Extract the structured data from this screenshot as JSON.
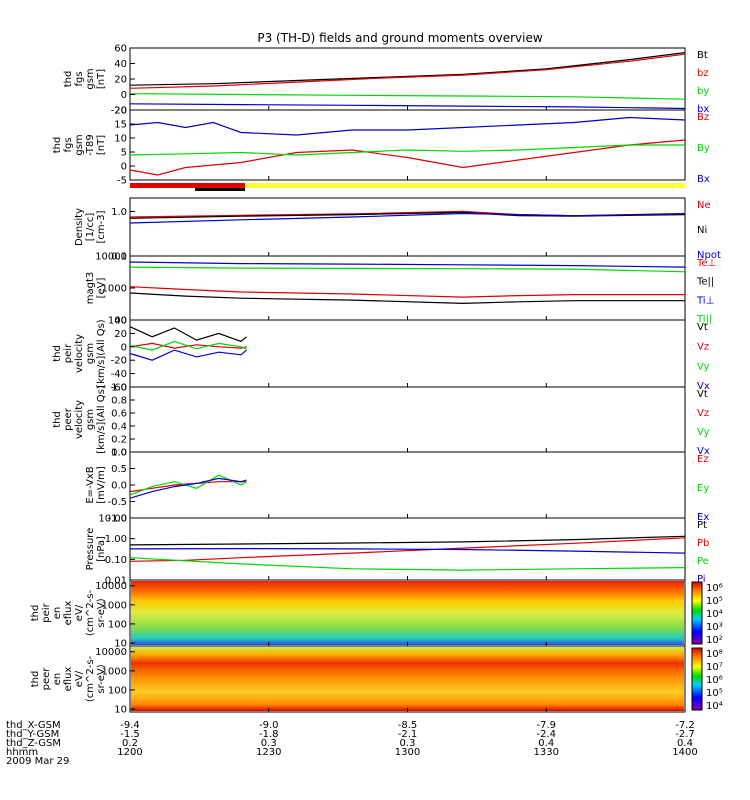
{
  "title": "P3 (TH-D) fields and ground moments overview",
  "colors": {
    "black": "#000000",
    "red": "#e00000",
    "green": "#00d800",
    "blue": "#0000cc",
    "yellow": "#ffff40"
  },
  "chart_data": {
    "type": "line",
    "x_ticks": [
      "1200",
      "1230",
      "1300",
      "1330",
      "1400"
    ],
    "footer": {
      "labels": [
        "thd_X-GSM",
        "thd_Y-GSM",
        "thd_Z-GSM",
        "hhmm",
        "2009 Mar 29"
      ],
      "rows": [
        [
          "-9.4",
          "-9.0",
          "-8.5",
          "-7.9",
          "-7.2"
        ],
        [
          "-1.5",
          "-1.8",
          "-2.1",
          "-2.4",
          "-2.7"
        ],
        [
          "0.2",
          "0.3",
          "0.3",
          "0.4",
          "0.4"
        ],
        [
          "1200",
          "1230",
          "1300",
          "1330",
          "1400"
        ]
      ]
    },
    "panels": [
      {
        "id": "fgs",
        "ylabel": [
          "thd",
          "fgs",
          "gsm",
          "[nT]"
        ],
        "ylim": [
          -20,
          60
        ],
        "yticks": [
          "60",
          "40",
          "20",
          "0",
          "-20"
        ],
        "legend": [
          "Bt",
          "bz",
          "by",
          "bx"
        ],
        "series": [
          {
            "name": "Bt",
            "color": "black",
            "x": [
              0,
              0.15,
              0.3,
              0.45,
              0.6,
              0.75,
              0.9,
              1
            ],
            "y": [
              12,
              14,
              18,
              22,
              26,
              33,
              45,
              54
            ]
          },
          {
            "name": "bz",
            "color": "red",
            "x": [
              0,
              0.15,
              0.3,
              0.45,
              0.6,
              0.75,
              0.9,
              1
            ],
            "y": [
              8,
              11,
              16,
              21,
              25,
              32,
              43,
              52
            ]
          },
          {
            "name": "by",
            "color": "green",
            "x": [
              0,
              0.2,
              0.4,
              0.6,
              0.8,
              1
            ],
            "y": [
              1,
              0,
              -1,
              -2,
              -3,
              -6
            ]
          },
          {
            "name": "bx",
            "color": "blue",
            "x": [
              0,
              0.2,
              0.4,
              0.6,
              0.8,
              1
            ],
            "y": [
              -12,
              -13,
              -14,
              -15,
              -16,
              -18
            ]
          }
        ]
      },
      {
        "id": "t89",
        "ylabel": [
          "thd",
          "fgs",
          "gsm",
          "-T89",
          "[nT]"
        ],
        "ylim": [
          -8,
          20
        ],
        "yticks": [
          "20",
          "15",
          "10",
          "5",
          "0",
          "-5"
        ],
        "legend": [
          "Bz",
          "By",
          "Bx"
        ],
        "series": [
          {
            "name": "Bz",
            "color": "red",
            "x": [
              0,
              0.05,
              0.1,
              0.2,
              0.3,
              0.4,
              0.5,
              0.6,
              0.7,
              0.8,
              0.9,
              1
            ],
            "y": [
              -4,
              -6,
              -3,
              -1,
              3,
              4,
              1,
              -3,
              0,
              3,
              6,
              8
            ]
          },
          {
            "name": "By",
            "color": "green",
            "x": [
              0,
              0.1,
              0.2,
              0.3,
              0.4,
              0.5,
              0.6,
              0.7,
              0.8,
              0.9,
              1
            ],
            "y": [
              2,
              2.5,
              3,
              2,
              3,
              4,
              3.5,
              4,
              5,
              6,
              6
            ]
          },
          {
            "name": "Bx",
            "color": "blue",
            "x": [
              0,
              0.05,
              0.1,
              0.15,
              0.2,
              0.3,
              0.4,
              0.5,
              0.6,
              0.7,
              0.8,
              0.9,
              1
            ],
            "y": [
              14,
              15,
              13,
              15,
              11,
              10,
              12,
              12,
              13,
              14,
              15,
              17,
              16
            ]
          }
        ]
      },
      {
        "id": "density",
        "ylabel": [
          "Density",
          "[1/cc]",
          "[cm-3]"
        ],
        "scale": "log",
        "ylim": [
          0.1,
          2
        ],
        "yticks": [
          "1.0",
          "0.1"
        ],
        "legend": [
          "Ne",
          "Ni",
          "Npot"
        ],
        "series": [
          {
            "name": "Ne",
            "color": "red",
            "x": [
              0,
              0.2,
              0.4,
              0.6,
              0.7,
              0.8,
              1
            ],
            "y": [
              0.75,
              0.82,
              0.88,
              1.0,
              0.85,
              0.8,
              0.9
            ]
          },
          {
            "name": "Ni",
            "color": "black",
            "x": [
              0,
              0.2,
              0.4,
              0.6,
              0.7,
              0.8,
              1
            ],
            "y": [
              0.7,
              0.78,
              0.85,
              0.95,
              0.8,
              0.78,
              0.85
            ]
          },
          {
            "name": "Npot",
            "color": "blue",
            "x": [
              0,
              0.2,
              0.4,
              0.6,
              0.8,
              1
            ],
            "y": [
              0.55,
              0.65,
              0.75,
              0.9,
              0.8,
              0.88
            ]
          }
        ]
      },
      {
        "id": "temp",
        "ylabel": [
          "magt3",
          "[eV]"
        ],
        "scale": "log",
        "ylim": [
          100,
          10000
        ],
        "yticks": [
          "10000",
          "1000",
          "100"
        ],
        "legend": [
          "Te⊥",
          "Te||",
          "Ti⊥",
          "Ti||"
        ],
        "series": [
          {
            "name": "Ti⊥",
            "color": "blue",
            "x": [
              0,
              0.2,
              0.4,
              0.6,
              0.8,
              1
            ],
            "y": [
              6500,
              5800,
              5600,
              5300,
              5000,
              4500
            ]
          },
          {
            "name": "Ti||",
            "color": "green",
            "x": [
              0,
              0.2,
              0.4,
              0.6,
              0.8,
              1
            ],
            "y": [
              4500,
              4200,
              4100,
              4000,
              3900,
              3200
            ]
          },
          {
            "name": "Te⊥",
            "color": "red",
            "x": [
              0,
              0.1,
              0.2,
              0.4,
              0.6,
              0.7,
              0.8,
              1
            ],
            "y": [
              1100,
              900,
              750,
              650,
              520,
              580,
              620,
              620
            ]
          },
          {
            "name": "Te||",
            "color": "black",
            "x": [
              0,
              0.1,
              0.2,
              0.4,
              0.6,
              0.7,
              0.8,
              1
            ],
            "y": [
              700,
              560,
              480,
              420,
              330,
              370,
              400,
              400
            ]
          }
        ]
      },
      {
        "id": "peir",
        "ylabel": [
          "thd",
          "peir",
          "velocity",
          "gsm",
          "[km/s](All Qs)"
        ],
        "ylim": [
          -60,
          40
        ],
        "yticks": [
          "40",
          "20",
          "0",
          "-20",
          "-40",
          "-60"
        ],
        "legend": [
          "Vt",
          "Vz",
          "Vy",
          "Vx"
        ],
        "series": [
          {
            "name": "Vt",
            "color": "black",
            "x": [
              0,
              0.04,
              0.08,
              0.12,
              0.16,
              0.2,
              0.21
            ],
            "y": [
              30,
              15,
              28,
              10,
              20,
              8,
              15
            ]
          },
          {
            "name": "Vz",
            "color": "red",
            "x": [
              0,
              0.04,
              0.08,
              0.12,
              0.16,
              0.2,
              0.21
            ],
            "y": [
              0,
              5,
              -2,
              3,
              0,
              -2,
              0
            ]
          },
          {
            "name": "Vy",
            "color": "green",
            "x": [
              0,
              0.04,
              0.08,
              0.12,
              0.16,
              0.2,
              0.21
            ],
            "y": [
              2,
              -5,
              8,
              -3,
              5,
              0,
              -3
            ]
          },
          {
            "name": "Vx",
            "color": "blue",
            "x": [
              0,
              0.04,
              0.08,
              0.12,
              0.16,
              0.2,
              0.21
            ],
            "y": [
              -10,
              -20,
              -5,
              -15,
              -8,
              -12,
              -5
            ]
          }
        ]
      },
      {
        "id": "peer",
        "ylabel": [
          "thd",
          "peer",
          "velocity",
          "gsm",
          "[km/s](All Qs)"
        ],
        "ylim": [
          0,
          1
        ],
        "yticks": [
          "1.0",
          "0.8",
          "0.6",
          "0.4",
          "0.2",
          "0.0"
        ],
        "legend": [
          "Vt",
          "Vz",
          "Vy",
          "Vx"
        ],
        "series": []
      },
      {
        "id": "efield",
        "ylabel": [
          "E=-VxB",
          "[mV/m]"
        ],
        "ylim": [
          -1,
          1
        ],
        "yticks": [
          "1.0",
          "0.5",
          "0.0",
          "-0.5",
          "-1.0"
        ],
        "legend": [
          "Ez",
          "Ey",
          "Ex"
        ],
        "series": [
          {
            "name": "Ez",
            "color": "red",
            "x": [
              0,
              0.04,
              0.08,
              0.12,
              0.16,
              0.2,
              0.21
            ],
            "y": [
              -0.2,
              -0.1,
              0.0,
              0.05,
              0.1,
              0.1,
              0.1
            ]
          },
          {
            "name": "Ey",
            "color": "green",
            "x": [
              0,
              0.04,
              0.08,
              0.12,
              0.16,
              0.2,
              0.21
            ],
            "y": [
              -0.3,
              -0.05,
              0.1,
              -0.1,
              0.3,
              0.0,
              0.1
            ]
          },
          {
            "name": "Ex",
            "color": "blue",
            "x": [
              0,
              0.04,
              0.08,
              0.12,
              0.16,
              0.2,
              0.21
            ],
            "y": [
              -0.4,
              -0.2,
              -0.05,
              0.05,
              0.2,
              0.1,
              0.15
            ]
          }
        ]
      },
      {
        "id": "pressure",
        "ylabel": [
          "Pressure",
          "[nPa]"
        ],
        "scale": "log",
        "ylim": [
          0.01,
          10
        ],
        "yticks": [
          "10.00",
          "1.00",
          "0.10",
          "0.01"
        ],
        "legend": [
          "Pt",
          "Pb",
          "Pe",
          "Pi"
        ],
        "series": [
          {
            "name": "Pt",
            "color": "black",
            "x": [
              0,
              0.2,
              0.4,
              0.6,
              0.8,
              1
            ],
            "y": [
              0.5,
              0.55,
              0.62,
              0.7,
              0.9,
              1.3
            ]
          },
          {
            "name": "Pb",
            "color": "red",
            "x": [
              0,
              0.1,
              0.2,
              0.4,
              0.6,
              0.8,
              1
            ],
            "y": [
              0.08,
              0.09,
              0.12,
              0.2,
              0.35,
              0.6,
              1.1
            ]
          },
          {
            "name": "Pe",
            "color": "green",
            "x": [
              0,
              0.2,
              0.4,
              0.6,
              0.8,
              1
            ],
            "y": [
              0.12,
              0.06,
              0.035,
              0.03,
              0.035,
              0.04
            ]
          },
          {
            "name": "Pi",
            "color": "blue",
            "x": [
              0,
              0.2,
              0.4,
              0.6,
              0.8,
              1
            ],
            "y": [
              0.32,
              0.33,
              0.32,
              0.3,
              0.25,
              0.2
            ]
          }
        ]
      },
      {
        "id": "peir_spec",
        "type": "heatmap",
        "ylabel": [
          "thd",
          "peir",
          "en",
          "eflux",
          "eV/",
          "(cm^2-s-",
          "sr-eV)"
        ],
        "scale": "log",
        "ylim": [
          7,
          20000
        ],
        "yticks": [
          "10000",
          "1000",
          "100",
          "10"
        ],
        "colorbar_ticks": [
          "10⁶",
          "10⁵",
          "10⁴",
          "10³",
          "10²"
        ]
      },
      {
        "id": "peer_spec",
        "type": "heatmap",
        "ylabel": [
          "thd",
          "peer",
          "en",
          "eflux",
          "eV/",
          "(cm^2-s-",
          "sr-eV)"
        ],
        "scale": "log",
        "ylim": [
          7,
          20000
        ],
        "yticks": [
          "10000",
          "1000",
          "100",
          "10"
        ],
        "colorbar_ticks": [
          "10⁸",
          "10⁷",
          "10⁶",
          "10⁵",
          "10⁴"
        ]
      }
    ]
  }
}
